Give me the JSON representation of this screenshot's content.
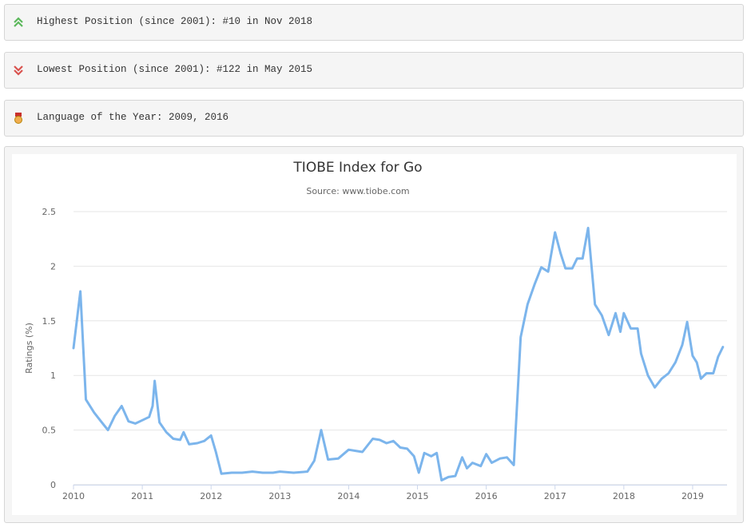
{
  "info_boxes": [
    {
      "text": "Highest Position (since 2001): #10 in Nov 2018"
    },
    {
      "text": "Lowest Position (since 2001): #122 in May 2015"
    },
    {
      "text": "Language of the Year: 2009, 2016"
    }
  ],
  "chart_data": {
    "type": "line",
    "title": "TIOBE Index for Go",
    "subtitle": "Source: www.tiobe.com",
    "y_label": "Ratings (%)",
    "color": "#7cb5ec",
    "grid": true,
    "xlim": [
      2010,
      2019.5
    ],
    "xticks": [
      2010,
      2011,
      2012,
      2013,
      2014,
      2015,
      2016,
      2017,
      2018,
      2019
    ],
    "ylim": [
      0,
      2.5
    ],
    "yticks": [
      0,
      0.5,
      1,
      1.5,
      2,
      2.5
    ],
    "x": [
      2010.0,
      2010.1,
      2010.18,
      2010.3,
      2010.4,
      2010.5,
      2010.6,
      2010.7,
      2010.8,
      2010.9,
      2011.0,
      2011.1,
      2011.15,
      2011.18,
      2011.25,
      2011.35,
      2011.45,
      2011.55,
      2011.6,
      2011.68,
      2011.8,
      2011.9,
      2012.0,
      2012.07,
      2012.15,
      2012.3,
      2012.45,
      2012.6,
      2012.75,
      2012.9,
      2013.0,
      2013.2,
      2013.4,
      2013.5,
      2013.6,
      2013.7,
      2013.85,
      2014.0,
      2014.1,
      2014.2,
      2014.35,
      2014.45,
      2014.55,
      2014.65,
      2014.75,
      2014.85,
      2014.95,
      2015.02,
      2015.1,
      2015.2,
      2015.28,
      2015.35,
      2015.45,
      2015.55,
      2015.65,
      2015.72,
      2015.8,
      2015.92,
      2016.0,
      2016.08,
      2016.2,
      2016.3,
      2016.4,
      2016.5,
      2016.6,
      2016.7,
      2016.8,
      2016.9,
      2017.0,
      2017.08,
      2017.15,
      2017.25,
      2017.32,
      2017.4,
      2017.48,
      2017.58,
      2017.68,
      2017.78,
      2017.88,
      2017.95,
      2018.0,
      2018.1,
      2018.2,
      2018.25,
      2018.35,
      2018.45,
      2018.55,
      2018.65,
      2018.75,
      2018.85,
      2018.92,
      2019.0,
      2019.06,
      2019.12,
      2019.2,
      2019.3,
      2019.37,
      2019.44
    ],
    "values": [
      1.25,
      1.77,
      0.78,
      0.66,
      0.58,
      0.5,
      0.63,
      0.72,
      0.58,
      0.56,
      0.59,
      0.62,
      0.72,
      0.95,
      0.57,
      0.48,
      0.42,
      0.41,
      0.48,
      0.37,
      0.38,
      0.4,
      0.45,
      0.3,
      0.1,
      0.11,
      0.11,
      0.12,
      0.11,
      0.11,
      0.12,
      0.11,
      0.12,
      0.22,
      0.5,
      0.23,
      0.24,
      0.32,
      0.31,
      0.3,
      0.42,
      0.41,
      0.38,
      0.4,
      0.34,
      0.33,
      0.26,
      0.11,
      0.29,
      0.26,
      0.29,
      0.04,
      0.07,
      0.08,
      0.25,
      0.15,
      0.2,
      0.17,
      0.28,
      0.2,
      0.24,
      0.25,
      0.18,
      1.35,
      1.65,
      1.83,
      1.99,
      1.95,
      2.31,
      2.12,
      1.98,
      1.98,
      2.07,
      2.07,
      2.35,
      1.65,
      1.55,
      1.37,
      1.57,
      1.4,
      1.57,
      1.43,
      1.43,
      1.2,
      1.0,
      0.89,
      0.97,
      1.02,
      1.12,
      1.28,
      1.49,
      1.18,
      1.12,
      0.97,
      1.02,
      1.02,
      1.17,
      1.26
    ]
  }
}
